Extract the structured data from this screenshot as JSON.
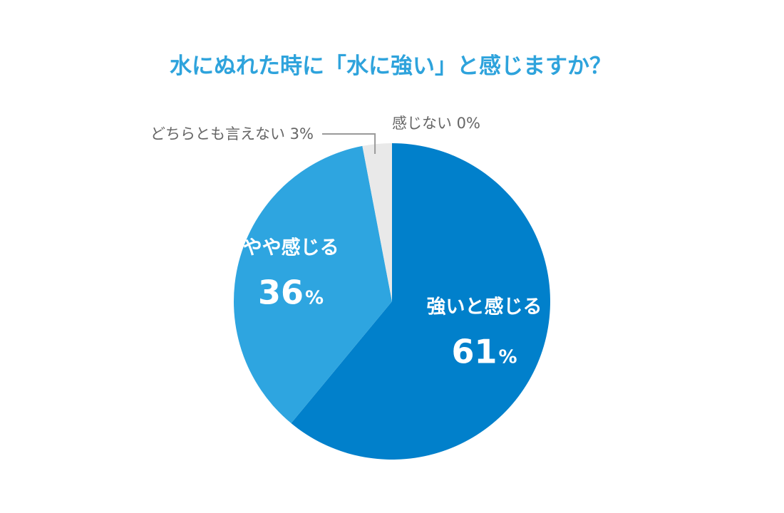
{
  "chart_data": {
    "type": "pie",
    "title": "水にぬれた時に「水に強い」と感じますか？",
    "slices": [
      {
        "label": "強いと感じる",
        "value": 61,
        "unit": "%",
        "color": "#0180cb"
      },
      {
        "label": "やや感じる",
        "value": 36,
        "unit": "%",
        "color": "#2ea5e0"
      },
      {
        "label": "どちらとも言えない",
        "value": 3,
        "unit": "%",
        "color": "#e9e9e9",
        "callout": "どちらとも言えない 3%"
      },
      {
        "label": "感じない",
        "value": 0,
        "unit": "%",
        "color": "#d0d0d0",
        "callout": "感じない 0%"
      }
    ]
  }
}
